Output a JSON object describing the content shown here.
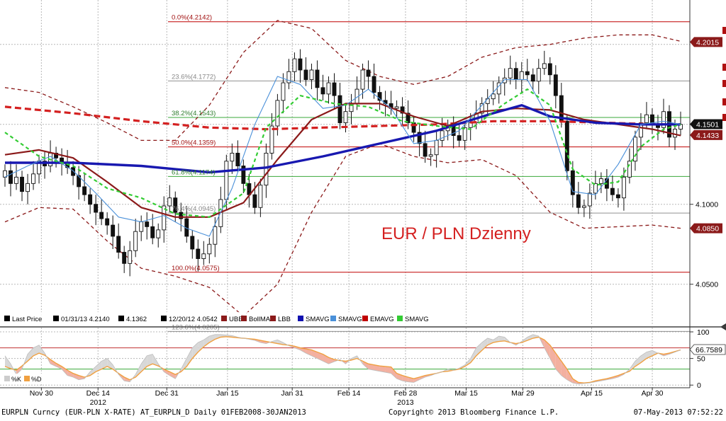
{
  "chart_data": [
    {
      "type": "candlestick",
      "annotation": "EUR / PLN Dzienny",
      "y_axis": {
        "ticks": [
          "4.1000",
          "4.0500"
        ],
        "ylim": [
          4.0242,
          4.2278
        ]
      },
      "x_axis": {
        "ticks": [
          "Nov 30",
          "Dec 14",
          "Dec 31",
          "Jan 15",
          "Jan 31",
          "Feb 14",
          "Feb 28",
          "Mar 15",
          "Mar 29",
          "Apr 15",
          "Apr 30"
        ],
        "year_labels": [
          {
            "label": "2012",
            "under": "Dec 14"
          },
          {
            "label": "2013",
            "under": "Feb 28"
          }
        ],
        "start_date": "2012-11-21",
        "end_date": "2013-05-07",
        "bar_count": 120
      },
      "fibonacci_levels": [
        {
          "label": "0.0%(4.2142)",
          "value": 4.2142,
          "color": "#c00000"
        },
        {
          "label": "23.6%(4.1772)",
          "value": 4.1772,
          "color": "#909090"
        },
        {
          "label": "38.2%(4.1543)",
          "value": 4.1543,
          "color": "#3aa83a"
        },
        {
          "label": "50.0%(4.1359)",
          "value": 4.1359,
          "color": "#c00000"
        },
        {
          "label": "61.8%(4.1174)",
          "value": 4.1174,
          "color": "#3aa83a"
        },
        {
          "label": "76.4%(4.0945)",
          "value": 4.0945,
          "color": "#909090"
        },
        {
          "label": "100.0%(4.0575)",
          "value": 4.0575,
          "color": "#c00000"
        },
        {
          "label": "123.6%(4.0205)",
          "value": 4.0205,
          "color": "#909090"
        }
      ],
      "value_tags": [
        {
          "label": "4.2015",
          "value": 4.2015,
          "bg": "#8b1a1a",
          "fg": "#ffffff"
        },
        {
          "label": "4.1501",
          "value": 4.1501,
          "bg": "#111111",
          "fg": "#ffffff"
        },
        {
          "label": "4.1433",
          "value": 4.1433,
          "bg": "#8b1a1a",
          "fg": "#ffffff"
        },
        {
          "label": "4.0850",
          "value": 4.085,
          "bg": "#8b1a1a",
          "fg": "#ffffff"
        }
      ],
      "legend": {
        "items": [
          {
            "label": "Last Price",
            "color": "#000000"
          },
          {
            "label": "01/31/13 4.2140",
            "color": "#000000"
          },
          {
            "label": "4.1362",
            "color": "#000000"
          },
          {
            "label": "12/20/12 4.0542",
            "color": "#000000"
          },
          {
            "label": "UBB",
            "color": "#8b1a1a"
          },
          {
            "label": "BollMA",
            "color": "#8b1a1a"
          },
          {
            "label": "LBB",
            "color": "#8b1a1a"
          },
          {
            "label": "SMAVG",
            "color": "#1010b0"
          },
          {
            "label": "SMAVG",
            "color": "#4a90d9"
          },
          {
            "label": "EMAVG",
            "color": "#c00000"
          },
          {
            "label": "SMAVG",
            "color": "#33cc33"
          }
        ]
      },
      "series": [
        {
          "name": "Last Price",
          "kind": "candles",
          "close": [
            4.121,
            4.113,
            4.117,
            4.108,
            4.113,
            4.119,
            4.127,
            4.124,
            4.132,
            4.129,
            4.126,
            4.123,
            4.118,
            4.111,
            4.106,
            4.1,
            4.095,
            4.091,
            4.087,
            4.08,
            4.07,
            4.063,
            4.071,
            4.083,
            4.089,
            4.086,
            4.079,
            4.084,
            4.099,
            4.104,
            4.095,
            4.091,
            4.08,
            4.072,
            4.066,
            4.069,
            4.075,
            4.086,
            4.103,
            4.127,
            4.132,
            4.124,
            4.113,
            4.106,
            4.098,
            4.112,
            4.132,
            4.149,
            4.165,
            4.176,
            4.183,
            4.191,
            4.184,
            4.178,
            4.184,
            4.173,
            4.169,
            4.176,
            4.168,
            4.151,
            4.158,
            4.163,
            4.172,
            4.184,
            4.18,
            4.17,
            4.165,
            4.163,
            4.16,
            4.161,
            4.157,
            4.151,
            4.145,
            4.138,
            4.13,
            4.131,
            4.14,
            4.146,
            4.149,
            4.143,
            4.14,
            4.148,
            4.151,
            4.157,
            4.163,
            4.166,
            4.169,
            4.176,
            4.179,
            4.185,
            4.178,
            4.183,
            4.181,
            4.177,
            4.185,
            4.188,
            4.181,
            4.168,
            4.152,
            4.121,
            4.106,
            4.098,
            4.099,
            4.107,
            4.113,
            4.116,
            4.11,
            4.106,
            4.104,
            4.117,
            4.127,
            4.142,
            4.151,
            4.156,
            4.15,
            4.148,
            4.158,
            4.142,
            4.147,
            4.15
          ]
        },
        {
          "name": "EMAVG",
          "kind": "line",
          "color": "#d42020",
          "style": "dashed",
          "x": [
            0,
            12,
            24,
            36,
            46,
            56,
            66,
            76,
            86,
            96,
            106,
            115,
            119
          ],
          "y": [
            4.161,
            4.157,
            4.152,
            4.148,
            4.147,
            4.148,
            4.149,
            4.15,
            4.152,
            4.152,
            4.151,
            4.15,
            4.15
          ]
        },
        {
          "name": "BollMA",
          "kind": "line",
          "color": "#8b1a1a",
          "style": "solid",
          "x": [
            0,
            6,
            12,
            18,
            24,
            30,
            36,
            42,
            48,
            54,
            60,
            66,
            72,
            78,
            84,
            90,
            96,
            102,
            108,
            114,
            119
          ],
          "y": [
            4.131,
            4.134,
            4.129,
            4.114,
            4.098,
            4.092,
            4.092,
            4.101,
            4.128,
            4.153,
            4.163,
            4.163,
            4.155,
            4.149,
            4.158,
            4.16,
            4.159,
            4.153,
            4.15,
            4.147,
            4.143
          ]
        },
        {
          "name": "UBB",
          "kind": "line",
          "color": "#8b1a1a",
          "style": "dashed",
          "x": [
            0,
            6,
            12,
            18,
            24,
            30,
            36,
            42,
            48,
            54,
            60,
            66,
            72,
            78,
            84,
            90,
            96,
            102,
            108,
            114,
            119
          ],
          "y": [
            4.173,
            4.17,
            4.161,
            4.151,
            4.14,
            4.14,
            4.162,
            4.195,
            4.215,
            4.21,
            4.19,
            4.18,
            4.175,
            4.18,
            4.192,
            4.198,
            4.2,
            4.204,
            4.206,
            4.206,
            4.202
          ]
        },
        {
          "name": "LBB",
          "kind": "line",
          "color": "#8b1a1a",
          "style": "dashed",
          "x": [
            0,
            6,
            12,
            18,
            24,
            30,
            36,
            42,
            48,
            54,
            60,
            66,
            72,
            78,
            84,
            90,
            96,
            102,
            108,
            114,
            119
          ],
          "y": [
            4.089,
            4.098,
            4.097,
            4.077,
            4.06,
            4.055,
            4.048,
            4.03,
            4.05,
            4.095,
            4.13,
            4.138,
            4.13,
            4.126,
            4.128,
            4.118,
            4.095,
            4.085,
            4.086,
            4.087,
            4.085
          ]
        },
        {
          "name": "SMAVG",
          "kind": "line",
          "color": "#1818b0",
          "style": "solid",
          "x": [
            0,
            12,
            24,
            36,
            46,
            56,
            66,
            76,
            86,
            91,
            96,
            104,
            112,
            119
          ],
          "y": [
            4.126,
            4.126,
            4.124,
            4.12,
            4.123,
            4.13,
            4.138,
            4.146,
            4.157,
            4.162,
            4.155,
            4.151,
            4.15,
            4.15
          ]
        },
        {
          "name": "SMAVG",
          "kind": "line",
          "color": "#4a90d9",
          "style": "solid",
          "x": [
            0,
            4,
            8,
            12,
            16,
            20,
            24,
            28,
            32,
            36,
            40,
            44,
            48,
            52,
            56,
            60,
            64,
            68,
            72,
            76,
            80,
            84,
            88,
            92,
            96,
            100,
            104,
            108,
            112,
            116,
            119
          ],
          "y": [
            4.117,
            4.124,
            4.13,
            4.121,
            4.107,
            4.092,
            4.089,
            4.093,
            4.085,
            4.08,
            4.11,
            4.15,
            4.18,
            4.175,
            4.16,
            4.162,
            4.172,
            4.16,
            4.138,
            4.14,
            4.146,
            4.162,
            4.178,
            4.178,
            4.152,
            4.108,
            4.106,
            4.125,
            4.15,
            4.152,
            4.15
          ]
        },
        {
          "name": "SMAVG",
          "kind": "line",
          "color": "#33cc33",
          "style": "dashed",
          "x": [
            0,
            6,
            12,
            18,
            24,
            30,
            36,
            42,
            46,
            52,
            58,
            64,
            70,
            76,
            82,
            88,
            92,
            96,
            100,
            104,
            108,
            112,
            116,
            119
          ],
          "y": [
            4.145,
            4.13,
            4.124,
            4.11,
            4.104,
            4.094,
            4.092,
            4.107,
            4.148,
            4.168,
            4.163,
            4.161,
            4.152,
            4.149,
            4.147,
            4.163,
            4.172,
            4.162,
            4.122,
            4.112,
            4.114,
            4.136,
            4.147,
            4.15
          ]
        }
      ]
    },
    {
      "type": "line",
      "y_axis": {
        "ticks": [
          "100",
          "50",
          "0"
        ],
        "ylim": [
          -5,
          108
        ]
      },
      "value_tag": {
        "label": "66.7589",
        "value": 66.7589
      },
      "bands": [
        {
          "value": 70,
          "color": "#c03030"
        },
        {
          "value": 30,
          "color": "#3aa83a"
        }
      ],
      "legend": {
        "items": [
          {
            "label": "%K",
            "color": "#cccccc"
          },
          {
            "label": "%D",
            "color": "#f0a040"
          }
        ]
      },
      "series": [
        {
          "name": "%D",
          "color": "#f0a040",
          "values": [
            35,
            31,
            28,
            36,
            45,
            55,
            60,
            56,
            48,
            41,
            35,
            28,
            22,
            18,
            15,
            18,
            25,
            30,
            35,
            30,
            22,
            15,
            10,
            15,
            25,
            35,
            40,
            36,
            30,
            25,
            20,
            25,
            35,
            50,
            62,
            72,
            80,
            86,
            90,
            91,
            90,
            89,
            88,
            87,
            86,
            84,
            82,
            80,
            78,
            76,
            75,
            73,
            70,
            68,
            66,
            62,
            58,
            52,
            48,
            46,
            45,
            47,
            50,
            45,
            40,
            38,
            36,
            35,
            34,
            22,
            18,
            15,
            12,
            15,
            18,
            20,
            22,
            25,
            26,
            28,
            30,
            35,
            42,
            55,
            65,
            75,
            80,
            82,
            83,
            80,
            78,
            80,
            84,
            88,
            90,
            85,
            75,
            60,
            45,
            30,
            12,
            5,
            4,
            5,
            8,
            10,
            12,
            15,
            18,
            22,
            26,
            35,
            42,
            50,
            55,
            60,
            58,
            60,
            63,
            66
          ]
        },
        {
          "name": "%K",
          "color": "#cccccc",
          "values": [
            55,
            40,
            20,
            30,
            58,
            70,
            75,
            60,
            40,
            35,
            30,
            18,
            15,
            10,
            12,
            25,
            35,
            45,
            50,
            38,
            20,
            8,
            6,
            20,
            40,
            55,
            58,
            40,
            25,
            18,
            12,
            30,
            50,
            70,
            80,
            85,
            92,
            95,
            95,
            94,
            93,
            90,
            88,
            86,
            84,
            80,
            78,
            82,
            85,
            80,
            74,
            70,
            66,
            60,
            55,
            50,
            45,
            40,
            44,
            48,
            40,
            50,
            55,
            40,
            30,
            28,
            26,
            24,
            22,
            12,
            8,
            6,
            5,
            10,
            15,
            18,
            22,
            25,
            30,
            28,
            32,
            38,
            50,
            70,
            80,
            88,
            85,
            92,
            90,
            80,
            75,
            82,
            90,
            95,
            92,
            70,
            50,
            30,
            18,
            10,
            4,
            2,
            3,
            4,
            6,
            8,
            10,
            12,
            15,
            20,
            30,
            45,
            55,
            62,
            65,
            60,
            55,
            58,
            62,
            66
          ]
        }
      ]
    }
  ],
  "footer": {
    "left": "EURPLN Curncy (EUR-PLN X-RATE) AT_EURPLN_D  Daily 01FEB2008-30JAN2013",
    "center": "Copyright© 2013 Bloomberg Finance L.P.",
    "right": "07-May-2013 07:52:22"
  }
}
